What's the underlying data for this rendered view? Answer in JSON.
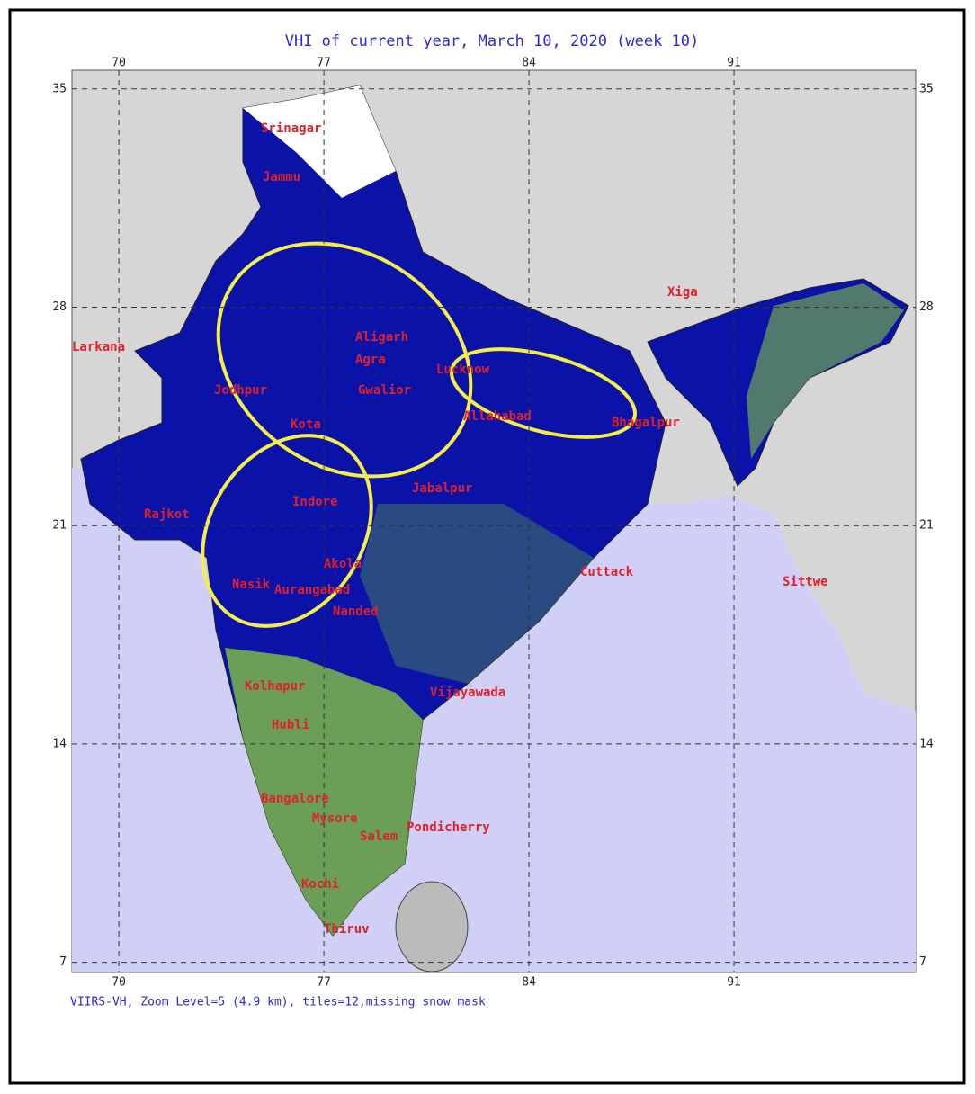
{
  "map": {
    "title": "VHI of current year, March 10, 2020 (week 10)",
    "footer": "VIIRS-VH, Zoom Level=5 (4.9 km), tiles=12,missing snow mask",
    "lon_range": [
      68.4,
      97.2
    ],
    "lat_range": [
      6.7,
      35.6
    ],
    "lon_ticks": [
      70,
      77,
      84,
      91
    ],
    "lat_ticks": [
      35,
      28,
      21,
      14,
      7
    ],
    "cities": [
      "Srinagar",
      "Jammu",
      "Larkana",
      "Jodhpur",
      "Aligarh",
      "Agra",
      "Gwalior",
      "Kota",
      "Lucknow",
      "Allahabad",
      "Bhagalpur",
      "Xiga",
      "Rajkot",
      "Indore",
      "Jabalpur",
      "Akola",
      "Nasik",
      "Aurangabad",
      "Nanded",
      "Cuttack",
      "Vijayawada",
      "Kolhapur",
      "Hubli",
      "Bangalore",
      "Mysore",
      "Salem",
      "Pondicherry",
      "Kochi",
      "Thiruv",
      "Sittwe"
    ]
  }
}
